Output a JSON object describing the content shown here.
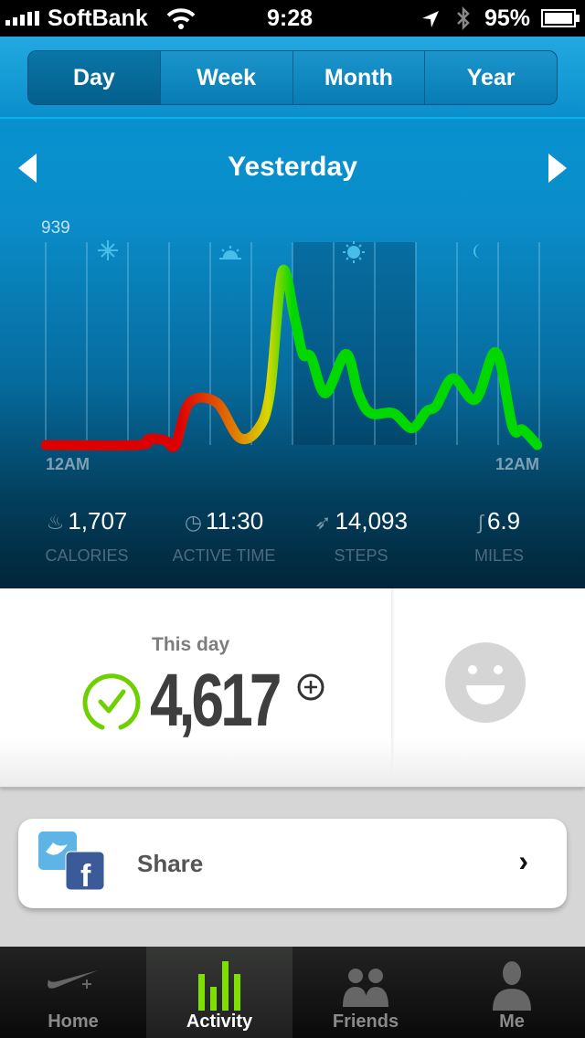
{
  "status_bar": {
    "carrier": "SoftBank",
    "time": "9:28",
    "battery": "95%"
  },
  "segments": [
    {
      "label": "Day",
      "active": true
    },
    {
      "label": "Week"
    },
    {
      "label": "Month"
    },
    {
      "label": "Year"
    }
  ],
  "date_label": "Yesterday",
  "chart_data": {
    "type": "line",
    "y_max_label": "939",
    "ylim": [
      0,
      939
    ],
    "xlim": [
      0,
      24
    ],
    "x_tick_labels": [
      "12AM",
      "12AM"
    ],
    "time_of_day_icons": [
      "night-star-icon",
      "sunrise-icon",
      "sun-icon",
      "moon-icon"
    ],
    "gradient_colors": {
      "low": "#dd0000",
      "mid": "#e07800",
      "high": "#d8d800",
      "top": "#00d800"
    },
    "x": [
      0,
      4.5,
      5.0,
      5.8,
      6.3,
      7.0,
      8.3,
      9.4,
      10.3,
      10.9,
      11.5,
      12.1,
      12.5,
      12.9,
      13.6,
      14.6,
      15.2,
      15.8,
      16.9,
      17.8,
      18.5,
      19.0,
      19.8,
      20.9,
      21.9,
      22.7,
      23.2,
      23.9
    ],
    "y": [
      0,
      0,
      33,
      25,
      0,
      229,
      229,
      41,
      82,
      278,
      931,
      686,
      490,
      474,
      278,
      490,
      278,
      171,
      171,
      90,
      180,
      212,
      359,
      245,
      498,
      98,
      82,
      0
    ]
  },
  "stats": [
    {
      "icon": "flame-icon",
      "value": "1,707",
      "label": "CALORIES"
    },
    {
      "icon": "stopwatch-icon",
      "value": "11:30",
      "label": "ACTIVE TIME"
    },
    {
      "icon": "shoe-icon",
      "value": "14,093",
      "label": "STEPS"
    },
    {
      "icon": "road-icon",
      "value": "6.9",
      "label": "MILES"
    }
  ],
  "summary": {
    "label": "This day",
    "value": "4,617",
    "goal_met": true
  },
  "share": {
    "label": "Share"
  },
  "tabs": [
    {
      "label": "Home"
    },
    {
      "label": "Activity",
      "active": true
    },
    {
      "label": "Friends"
    },
    {
      "label": "Me"
    }
  ]
}
